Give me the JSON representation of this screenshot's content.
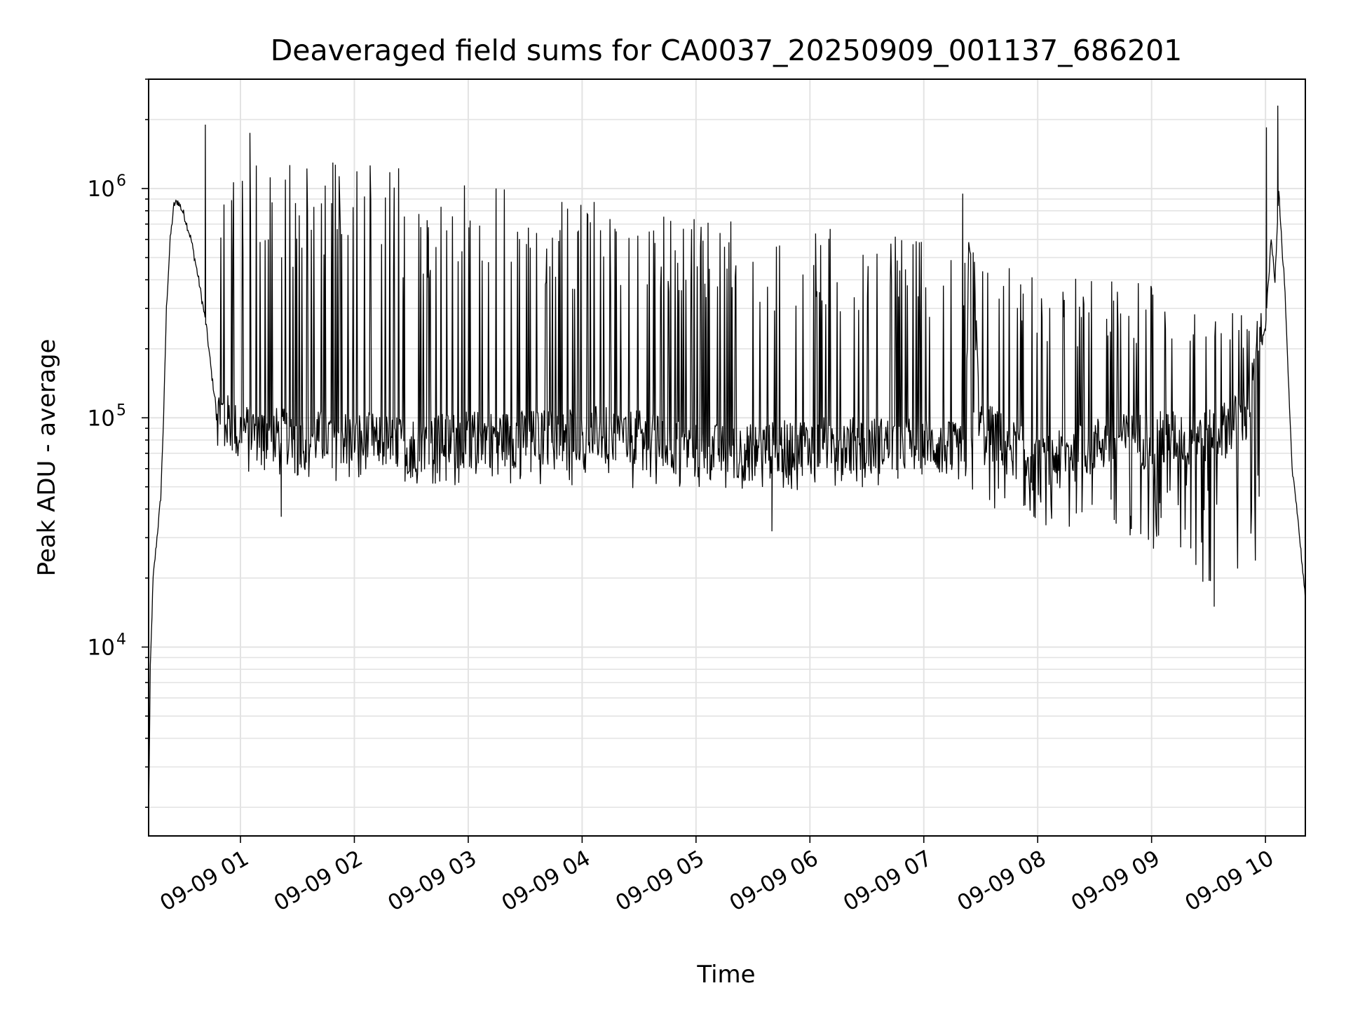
{
  "chart_data": {
    "type": "line",
    "title": "Deaveraged field sums for CA0037_20250909_001137_686201",
    "xlabel": "Time",
    "ylabel": "Peak ADU - average",
    "yscale": "log",
    "ylim": [
      1500,
      3000000
    ],
    "xlim": [
      "2025-09-09 00:11:37",
      "2025-09-09 10:21:00"
    ],
    "xticks": [
      "09-09 01",
      "09-09 02",
      "09-09 03",
      "09-09 04",
      "09-09 05",
      "09-09 06",
      "09-09 07",
      "09-09 08",
      "09-09 09",
      "09-09 10"
    ],
    "yticks": [
      {
        "base": "10",
        "exp": "4",
        "value": 10000
      },
      {
        "base": "10",
        "exp": "5",
        "value": 100000
      },
      {
        "base": "10",
        "exp": "6",
        "value": 1000000
      }
    ],
    "grid": true,
    "line_color": "#000000",
    "series": [
      {
        "x": [
          "2025-09-09 00:11:37",
          "2025-09-09 00:12:30",
          "2025-09-09 00:14:00",
          "2025-09-09 00:16:00",
          "2025-09-09 00:18:00",
          "2025-09-09 00:19:30",
          "2025-09-09 00:21:00",
          "2025-09-09 00:23:00",
          "2025-09-09 00:25:00",
          "2025-09-09 00:27:00",
          "2025-09-09 00:30:00",
          "2025-09-09 00:34:00",
          "2025-09-09 00:38:00",
          "2025-09-09 00:42:00",
          "2025-09-09 00:45:00",
          "2025-09-09 00:48:00",
          "2025-09-09 00:51:00",
          "2025-09-09 00:55:00",
          "2025-09-09 00:59:00",
          "2025-09-09 01:10:00",
          "2025-09-09 01:30:00",
          "2025-09-09 02:00:00",
          "2025-09-09 02:30:00",
          "2025-09-09 03:00:00",
          "2025-09-09 03:30:00",
          "2025-09-09 04:00:00",
          "2025-09-09 04:30:00",
          "2025-09-09 05:00:00",
          "2025-09-09 05:30:00",
          "2025-09-09 06:00:00",
          "2025-09-09 06:30:00",
          "2025-09-09 07:00:00",
          "2025-09-09 07:20:00",
          "2025-09-09 07:22:00",
          "2025-09-09 07:24:00",
          "2025-09-09 07:26:00",
          "2025-09-09 07:30:00",
          "2025-09-09 07:45:00",
          "2025-09-09 08:00:00",
          "2025-09-09 08:30:00",
          "2025-09-09 09:00:00",
          "2025-09-09 09:30:00",
          "2025-09-09 09:50:00",
          "2025-09-09 10:00:00",
          "2025-09-09 10:03:00",
          "2025-09-09 10:05:00",
          "2025-09-09 10:07:00",
          "2025-09-09 10:09:00",
          "2025-09-09 10:10:00",
          "2025-09-09 10:12:00",
          "2025-09-09 10:14:00",
          "2025-09-09 10:16:00",
          "2025-09-09 10:18:00",
          "2025-09-09 10:20:00",
          "2025-09-09 10:21:00"
        ],
        "y": [
          1800,
          8000,
          20000,
          30000,
          45000,
          100000,
          300000,
          600000,
          850000,
          880000,
          780000,
          600000,
          400000,
          250000,
          150000,
          100000,
          100000,
          90000,
          85000,
          85000,
          80000,
          80000,
          75000,
          80000,
          80000,
          85000,
          80000,
          70000,
          70000,
          75000,
          75000,
          75000,
          70000,
          60000,
          700000,
          400000,
          90000,
          75000,
          60000,
          75000,
          80000,
          80000,
          100000,
          250000,
          600000,
          400000,
          1000000,
          500000,
          400000,
          150000,
          60000,
          45000,
          30000,
          20000,
          16000
        ]
      }
    ],
    "envelope": {
      "x": [
        "2025-09-09 00:47:00",
        "2025-09-09 01:00:00",
        "2025-09-09 02:00:00",
        "2025-09-09 03:00:00",
        "2025-09-09 04:00:00",
        "2025-09-09 05:00:00",
        "2025-09-09 06:00:00",
        "2025-09-09 07:00:00",
        "2025-09-09 07:18:00",
        "2025-09-09 07:30:00",
        "2025-09-09 08:00:00",
        "2025-09-09 08:30:00",
        "2025-09-09 09:00:00",
        "2025-09-09 09:30:00",
        "2025-09-09 09:58:00"
      ],
      "upper": [
        1300000,
        1400000,
        1350000,
        1150000,
        900000,
        780000,
        700000,
        600000,
        520000,
        500000,
        430000,
        400000,
        400000,
        320000,
        300000
      ],
      "lower": [
        60000,
        58000,
        52000,
        50000,
        50000,
        48000,
        48000,
        52000,
        58000,
        35000,
        35000,
        28000,
        25000,
        18000,
        18000
      ]
    },
    "spikes": [
      {
        "x": "2025-09-09 00:41:30",
        "y": 1900000
      },
      {
        "x": "2025-09-09 01:05:00",
        "y": 1750000
      },
      {
        "x": "2025-09-09 10:06:30",
        "y": 2300000
      },
      {
        "x": "2025-09-09 10:00:30",
        "y": 1850000
      },
      {
        "x": "2025-09-09 07:20:30",
        "y": 950000
      },
      {
        "x": "2025-09-09 01:21:30",
        "y": 37000
      },
      {
        "x": "2025-09-09 05:40:00",
        "y": 32000
      },
      {
        "x": "2025-09-09 09:33:00",
        "y": 15000
      }
    ]
  }
}
